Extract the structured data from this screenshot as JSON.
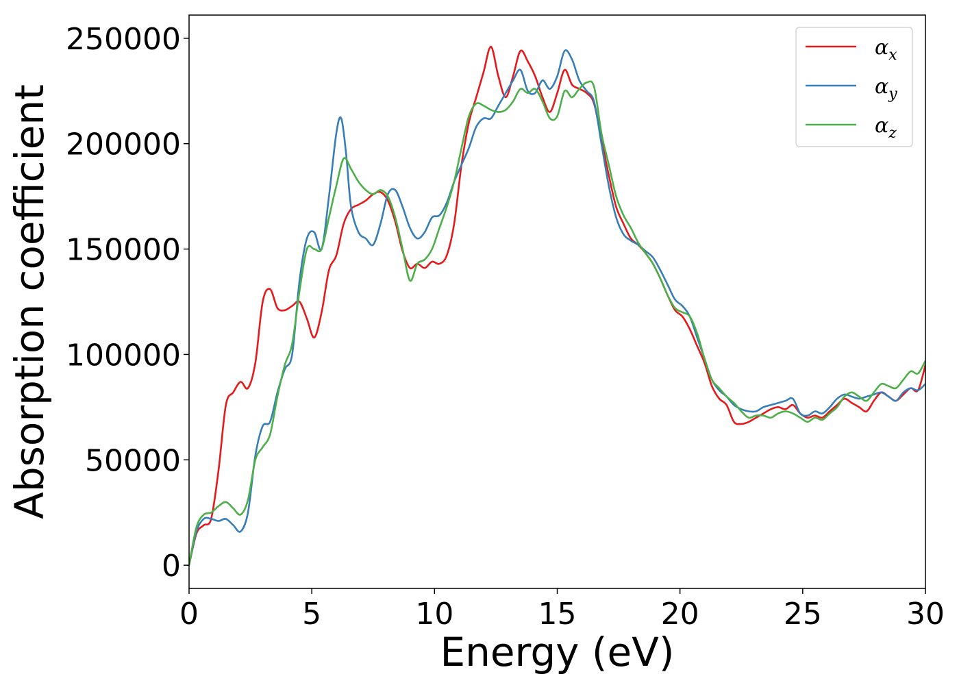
{
  "chart_data": {
    "type": "line",
    "xlabel": "Energy (eV)",
    "ylabel": "Absorption coefficient",
    "xlim": [
      0,
      30
    ],
    "ylim": [
      -11000,
      261000
    ],
    "xticks": [
      0,
      5,
      10,
      15,
      20,
      25,
      30
    ],
    "yticks": [
      0,
      50000,
      100000,
      150000,
      200000,
      250000
    ],
    "grid": false,
    "legend_position": "top-right",
    "series": [
      {
        "name": "α",
        "subscript": "x",
        "color": "#e41a1c",
        "x": [
          0,
          0.3,
          0.6,
          0.9,
          1.2,
          1.5,
          1.8,
          2.1,
          2.4,
          2.7,
          3.0,
          3.3,
          3.6,
          3.9,
          4.2,
          4.5,
          4.8,
          5.1,
          5.4,
          5.7,
          6.0,
          6.3,
          6.6,
          6.9,
          7.2,
          7.5,
          7.8,
          8.1,
          8.4,
          8.7,
          9.0,
          9.3,
          9.6,
          9.9,
          10.2,
          10.5,
          10.8,
          11.1,
          11.4,
          11.7,
          12.0,
          12.3,
          12.6,
          12.9,
          13.2,
          13.5,
          13.8,
          14.1,
          14.4,
          14.7,
          15.0,
          15.3,
          15.6,
          15.9,
          16.2,
          16.5,
          16.8,
          17.1,
          17.4,
          17.7,
          18.0,
          18.3,
          18.6,
          18.9,
          19.2,
          19.5,
          19.8,
          20.1,
          20.4,
          20.7,
          21.0,
          21.3,
          21.6,
          21.9,
          22.2,
          22.5,
          22.8,
          23.1,
          23.4,
          23.7,
          24.0,
          24.3,
          24.6,
          24.9,
          25.2,
          25.5,
          25.8,
          26.1,
          26.4,
          26.7,
          27.0,
          27.3,
          27.6,
          27.9,
          28.2,
          28.5,
          28.8,
          29.1,
          29.4,
          29.7,
          30.0
        ],
        "y": [
          0,
          15000,
          19000,
          22000,
          45000,
          76000,
          82000,
          87000,
          84000,
          96000,
          125000,
          131000,
          122000,
          121000,
          123000,
          125000,
          117000,
          108000,
          120000,
          140000,
          147000,
          162000,
          169000,
          171000,
          173000,
          176000,
          177000,
          173000,
          163000,
          149000,
          141000,
          143000,
          141000,
          144000,
          143000,
          147000,
          162000,
          190000,
          210000,
          222000,
          234000,
          246000,
          232000,
          222000,
          232000,
          244000,
          239000,
          232000,
          222000,
          215000,
          224000,
          235000,
          228000,
          226000,
          224000,
          219000,
          202000,
          185000,
          170000,
          162000,
          155000,
          152000,
          148000,
          143000,
          136000,
          128000,
          121000,
          118000,
          112000,
          104000,
          96000,
          85000,
          79000,
          76000,
          68000,
          67000,
          68000,
          70000,
          72000,
          74000,
          75000,
          74000,
          76000,
          72000,
          70000,
          71000,
          70000,
          73000,
          76000,
          79000,
          77000,
          75000,
          73000,
          78000,
          82000,
          80000,
          78000,
          81000,
          84000,
          83000,
          95000
        ]
      },
      {
        "name": "α",
        "subscript": "y",
        "color": "#377eb8",
        "x": [
          0,
          0.3,
          0.6,
          0.9,
          1.2,
          1.5,
          1.8,
          2.1,
          2.4,
          2.7,
          3.0,
          3.3,
          3.6,
          3.9,
          4.2,
          4.5,
          4.8,
          5.1,
          5.4,
          5.7,
          6.0,
          6.2,
          6.4,
          6.6,
          6.9,
          7.2,
          7.5,
          7.8,
          8.1,
          8.4,
          8.7,
          9.0,
          9.3,
          9.6,
          9.9,
          10.2,
          10.5,
          10.8,
          11.1,
          11.4,
          11.7,
          12.0,
          12.3,
          12.6,
          12.9,
          13.2,
          13.5,
          13.8,
          14.1,
          14.4,
          14.7,
          15.0,
          15.3,
          15.6,
          15.9,
          16.2,
          16.5,
          16.8,
          17.1,
          17.4,
          17.7,
          18.0,
          18.3,
          18.6,
          18.9,
          19.2,
          19.5,
          19.8,
          20.1,
          20.4,
          20.7,
          21.0,
          21.3,
          21.6,
          21.9,
          22.2,
          22.5,
          22.8,
          23.1,
          23.4,
          23.7,
          24.0,
          24.3,
          24.6,
          24.9,
          25.2,
          25.5,
          25.8,
          26.1,
          26.4,
          26.7,
          27.0,
          27.3,
          27.6,
          27.9,
          28.2,
          28.5,
          28.8,
          29.1,
          29.4,
          29.7,
          30.0
        ],
        "y": [
          0,
          16000,
          22000,
          22000,
          21000,
          22000,
          19000,
          16000,
          25000,
          52000,
          66000,
          68000,
          82000,
          93000,
          100000,
          135000,
          155000,
          158000,
          150000,
          175000,
          205000,
          212000,
          195000,
          170000,
          158000,
          155000,
          152000,
          162000,
          176000,
          178000,
          170000,
          160000,
          155000,
          158000,
          165000,
          166000,
          172000,
          182000,
          190000,
          198000,
          208000,
          212000,
          212000,
          218000,
          224000,
          230000,
          235000,
          225000,
          224000,
          230000,
          226000,
          232000,
          244000,
          240000,
          230000,
          225000,
          220000,
          200000,
          180000,
          165000,
          157000,
          154000,
          152000,
          149000,
          146000,
          140000,
          133000,
          126000,
          123000,
          118000,
          108000,
          98000,
          88000,
          83000,
          80000,
          76000,
          74000,
          73000,
          73000,
          75000,
          76000,
          77000,
          78000,
          79000,
          72000,
          71000,
          73000,
          72000,
          75000,
          79000,
          81000,
          80000,
          79000,
          80000,
          81000,
          82000,
          80000,
          78000,
          82000,
          84000,
          83000,
          86000
        ]
      },
      {
        "name": "α",
        "subscript": "z",
        "color": "#4daf4a",
        "x": [
          0,
          0.3,
          0.6,
          0.9,
          1.2,
          1.5,
          1.8,
          2.1,
          2.4,
          2.7,
          3.0,
          3.3,
          3.6,
          3.9,
          4.2,
          4.5,
          4.8,
          5.1,
          5.4,
          5.7,
          6.0,
          6.3,
          6.6,
          6.9,
          7.2,
          7.5,
          7.8,
          8.1,
          8.4,
          8.7,
          9.0,
          9.3,
          9.6,
          9.9,
          10.2,
          10.5,
          10.8,
          11.1,
          11.4,
          11.7,
          12.0,
          12.3,
          12.6,
          12.9,
          13.2,
          13.5,
          13.8,
          14.1,
          14.4,
          14.7,
          15.0,
          15.3,
          15.6,
          15.9,
          16.2,
          16.5,
          16.8,
          17.1,
          17.4,
          17.7,
          18.0,
          18.3,
          18.6,
          18.9,
          19.2,
          19.5,
          19.8,
          20.1,
          20.4,
          20.7,
          21.0,
          21.3,
          21.6,
          21.9,
          22.2,
          22.5,
          22.8,
          23.1,
          23.4,
          23.7,
          24.0,
          24.3,
          24.6,
          24.9,
          25.2,
          25.5,
          25.8,
          26.1,
          26.4,
          26.7,
          27.0,
          27.3,
          27.6,
          27.9,
          28.2,
          28.5,
          28.8,
          29.1,
          29.4,
          29.7,
          30.0
        ],
        "y": [
          0,
          18000,
          24000,
          25000,
          28000,
          30000,
          27000,
          24000,
          31000,
          50000,
          56000,
          62000,
          80000,
          95000,
          105000,
          130000,
          150000,
          150000,
          150000,
          165000,
          180000,
          193000,
          188000,
          182000,
          178000,
          176000,
          178000,
          175000,
          165000,
          150000,
          135000,
          143000,
          145000,
          150000,
          160000,
          170000,
          182000,
          198000,
          213000,
          219000,
          218000,
          216000,
          215000,
          216000,
          220000,
          226000,
          224000,
          226000,
          220000,
          212000,
          213000,
          225000,
          222000,
          226000,
          229000,
          227000,
          205000,
          190000,
          175000,
          166000,
          160000,
          153000,
          148000,
          143000,
          136000,
          128000,
          122000,
          120000,
          118000,
          110000,
          98000,
          88000,
          84000,
          80000,
          77000,
          73000,
          70000,
          71000,
          71000,
          70000,
          72000,
          73000,
          72000,
          70000,
          68000,
          70000,
          69000,
          72000,
          75000,
          80000,
          82000,
          80000,
          78000,
          82000,
          86000,
          85000,
          84000,
          88000,
          92000,
          91000,
          97000
        ]
      }
    ]
  }
}
